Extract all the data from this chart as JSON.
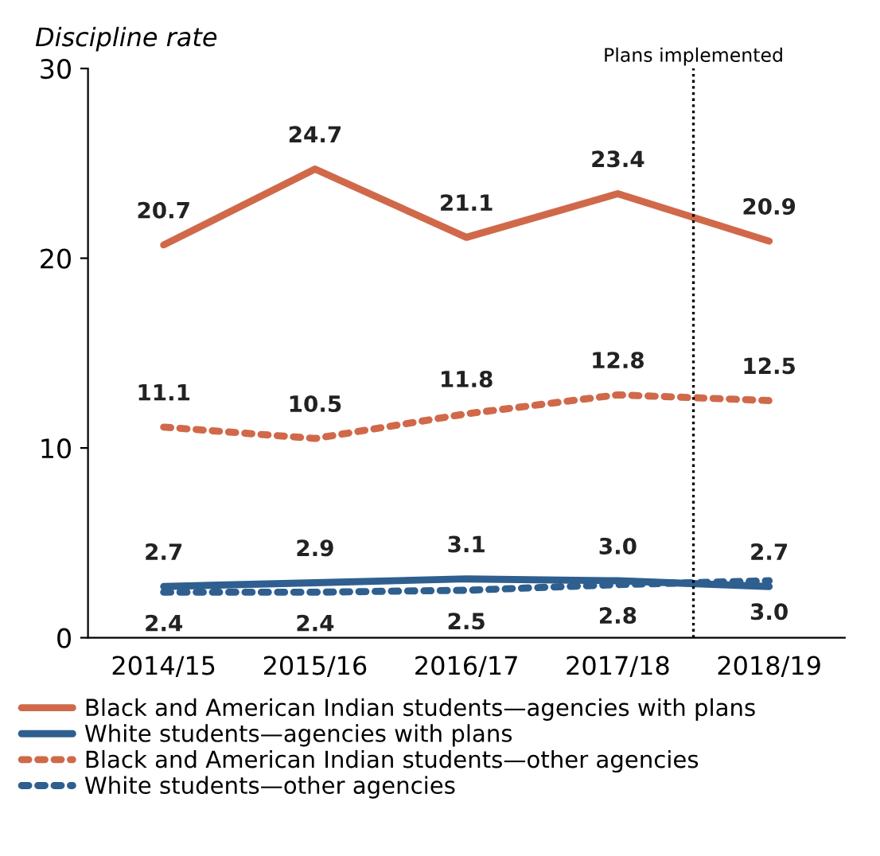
{
  "chart_data": {
    "type": "line",
    "ylabel": "Discipline rate",
    "categories": [
      "2014/15",
      "2015/16",
      "2016/17",
      "2017/18",
      "2018/19"
    ],
    "series": [
      {
        "name": "Black and American Indian students—agencies with plans",
        "color": "#d0694a",
        "line_style": "solid",
        "values": [
          20.7,
          24.7,
          21.1,
          23.4,
          20.9
        ],
        "value_labels": [
          "20.7",
          "24.7",
          "21.1",
          "23.4",
          "20.9"
        ]
      },
      {
        "name": "White students—agencies with plans",
        "color": "#2e5f8f",
        "line_style": "solid",
        "values": [
          2.7,
          2.9,
          3.1,
          3.0,
          2.7
        ],
        "value_labels": [
          "2.7",
          "2.9",
          "3.1",
          "3.0",
          "2.7"
        ]
      },
      {
        "name": "Black and American Indian students—other agencies",
        "color": "#d0694a",
        "line_style": "dotted",
        "values": [
          11.1,
          10.5,
          11.8,
          12.8,
          12.5
        ],
        "value_labels": [
          "11.1",
          "10.5",
          "11.8",
          "12.8",
          "12.5"
        ]
      },
      {
        "name": "White students—other agencies",
        "color": "#2e5f8f",
        "line_style": "dotted",
        "values": [
          2.4,
          2.4,
          2.5,
          2.8,
          3.0
        ],
        "value_labels": [
          "2.4",
          "2.4",
          "2.5",
          "2.8",
          "3.0"
        ]
      }
    ],
    "ylim": [
      0,
      30
    ],
    "yticks": [
      0,
      10,
      20,
      30
    ],
    "annotations": [
      "Plans implemented"
    ],
    "grid": false,
    "legend": "bottom",
    "marker": "none"
  }
}
